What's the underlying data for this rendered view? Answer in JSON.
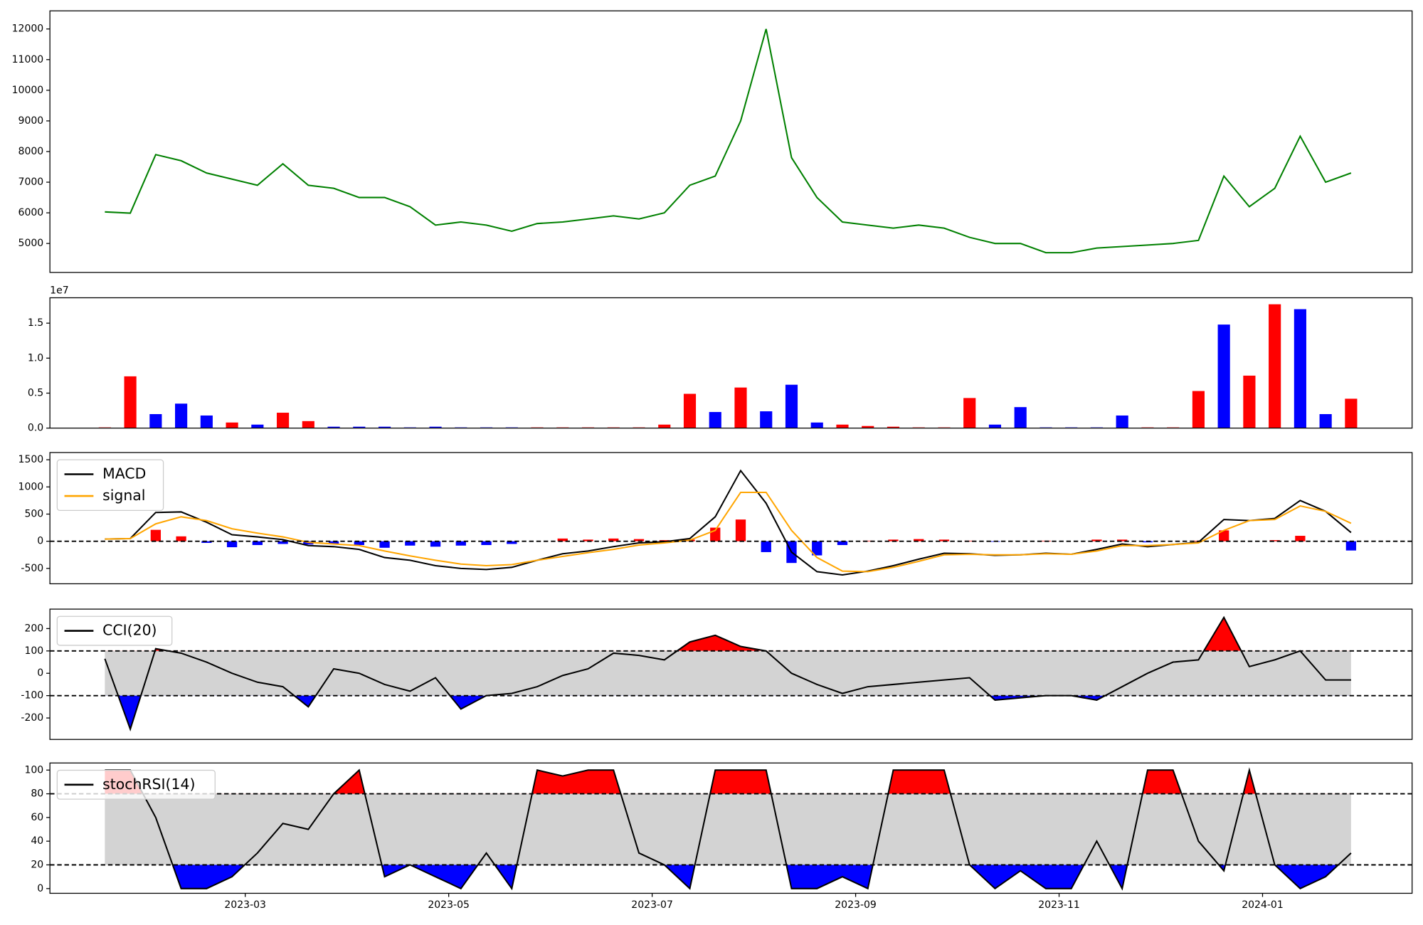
{
  "chart_data": {
    "type": "panels",
    "x": [
      0.62,
      0.87,
      1.12,
      1.37,
      1.62,
      1.87,
      2.12,
      2.37,
      2.62,
      2.87,
      3.12,
      3.37,
      3.62,
      3.87,
      4.12,
      4.37,
      4.62,
      4.87,
      5.12,
      5.37,
      5.62,
      5.87,
      6.12,
      6.37,
      6.62,
      6.87,
      7.12,
      7.37,
      7.62,
      7.87,
      8.12,
      8.37,
      8.62,
      8.87,
      9.12,
      9.37,
      9.62,
      9.87,
      10.12,
      10.37,
      10.62,
      10.87,
      11.12,
      11.37,
      11.62,
      11.87,
      12.12,
      12.37,
      12.62,
      12.87
    ],
    "xlim": [
      0.08,
      13.47
    ],
    "xticks": [
      {
        "value": 2,
        "label": "2023-03"
      },
      {
        "value": 4,
        "label": "2023-05"
      },
      {
        "value": 6,
        "label": "2023-07"
      },
      {
        "value": 8,
        "label": "2023-09"
      },
      {
        "value": 10,
        "label": "2023-11"
      },
      {
        "value": 12,
        "label": "2024-01"
      }
    ],
    "panels": [
      {
        "type": "line",
        "ylim": [
          4055,
          12591
        ],
        "yticks": [
          5000,
          6000,
          7000,
          8000,
          9000,
          10000,
          11000,
          12000
        ],
        "series": [
          {
            "color": "green",
            "values": [
              6030,
              5990,
              7900,
              7700,
              7300,
              7100,
              6900,
              7600,
              6900,
              6800,
              6500,
              6500,
              6200,
              5600,
              5700,
              5600,
              5400,
              5650,
              5700,
              5800,
              5900,
              5800,
              6000,
              6900,
              7200,
              9000,
              12000,
              7800,
              6500,
              5700,
              5600,
              5500,
              5600,
              5500,
              5200,
              5000,
              5000,
              4700,
              4700,
              4850,
              4900,
              4950,
              5000,
              5100,
              7200,
              6200,
              6800,
              8500,
              7000,
              7300
            ]
          }
        ]
      },
      {
        "type": "bar",
        "offset_label": "1e7",
        "ylim": [
          0,
          1.863
        ],
        "yticks": [
          {
            "value": 0,
            "label": "0.0"
          },
          {
            "value": 0.5,
            "label": "0.5"
          },
          {
            "value": 1,
            "label": "1.0"
          },
          {
            "value": 1.5,
            "label": "1.5"
          }
        ],
        "values": [
          0.01,
          0.74,
          0.2,
          0.35,
          0.18,
          0.08,
          0.05,
          0.22,
          0.1,
          0.02,
          0.02,
          0.02,
          0.01,
          0.02,
          0.01,
          0.01,
          0.01,
          0.01,
          0.01,
          0.01,
          0.01,
          0.01,
          0.05,
          0.49,
          0.23,
          0.58,
          0.24,
          0.62,
          0.08,
          0.05,
          0.03,
          0.02,
          0.01,
          0.01,
          0.43,
          0.05,
          0.3,
          0.01,
          0.01,
          0.01,
          0.18,
          0.01,
          0.01,
          0.53,
          1.48,
          0.75,
          1.77,
          1.7,
          0.2,
          0.42
        ],
        "colors": [
          "red",
          "red",
          "blue",
          "blue",
          "blue",
          "red",
          "blue",
          "red",
          "red",
          "blue",
          "blue",
          "blue",
          "blue",
          "blue",
          "blue",
          "blue",
          "blue",
          "red",
          "red",
          "red",
          "red",
          "red",
          "red",
          "red",
          "blue",
          "red",
          "blue",
          "blue",
          "blue",
          "red",
          "red",
          "red",
          "red",
          "red",
          "red",
          "blue",
          "blue",
          "blue",
          "blue",
          "blue",
          "blue",
          "red",
          "red",
          "red",
          "blue",
          "red",
          "red",
          "blue",
          "blue",
          "red"
        ]
      },
      {
        "type": "line",
        "legend": "upper left",
        "ylim": [
          -783,
          1633
        ],
        "yticks": [
          -500,
          0,
          500,
          1000,
          1500
        ],
        "hlines": [
          0
        ],
        "series": [
          {
            "name": "MACD",
            "color": "black",
            "values": [
              40,
              50,
              530,
              540,
              350,
              120,
              80,
              30,
              -80,
              -100,
              -150,
              -300,
              -350,
              -450,
              -500,
              -520,
              -480,
              -350,
              -230,
              -180,
              -100,
              -30,
              -10,
              50,
              450,
              1300,
              700,
              -200,
              -560,
              -620,
              -550,
              -450,
              -330,
              -220,
              -230,
              -260,
              -250,
              -220,
              -240,
              -150,
              -50,
              -100,
              -60,
              -20,
              400,
              380,
              420,
              750,
              550,
              160
            ]
          },
          {
            "name": "signal",
            "color": "orange",
            "values": [
              40,
              50,
              320,
              450,
              380,
              230,
              150,
              80,
              -20,
              -50,
              -80,
              -180,
              -270,
              -350,
              -420,
              -450,
              -430,
              -350,
              -280,
              -210,
              -150,
              -70,
              -30,
              20,
              200,
              900,
              900,
              200,
              -300,
              -550,
              -560,
              -480,
              -370,
              -250,
              -240,
              -250,
              -250,
              -230,
              -240,
              -180,
              -80,
              -80,
              -60,
              -30,
              200,
              380,
              400,
              650,
              550,
              330
            ]
          }
        ],
        "histogram": {
          "pos_color": "red",
          "neg_color": "blue",
          "values": [
            0,
            0,
            210,
            90,
            -30,
            -110,
            -70,
            -50,
            -60,
            -50,
            -70,
            -120,
            -80,
            -100,
            -80,
            -70,
            -50,
            0,
            50,
            30,
            50,
            40,
            20,
            30,
            250,
            400,
            -200,
            -400,
            -260,
            -70,
            10,
            30,
            40,
            30,
            10,
            -10,
            0,
            10,
            0,
            30,
            30,
            -20,
            0,
            10,
            200,
            0,
            20,
            100,
            0,
            -170
          ]
        }
      },
      {
        "type": "line",
        "legend": "upper left",
        "ylim": [
          -296,
          287
        ],
        "yticks": [
          -200,
          -100,
          0,
          100,
          200
        ],
        "hlines": [
          -100,
          100
        ],
        "band_color": "lightgray",
        "above_color": "red",
        "below_color": "blue",
        "series": [
          {
            "name": "CCI(20)",
            "color": "black",
            "values": [
              65,
              -250,
              110,
              90,
              50,
              0,
              -40,
              -60,
              -150,
              20,
              0,
              -50,
              -80,
              -20,
              -160,
              -100,
              -90,
              -60,
              -10,
              20,
              90,
              80,
              60,
              140,
              170,
              120,
              100,
              0,
              -50,
              -90,
              -60,
              -50,
              -40,
              -30,
              -20,
              -120,
              -110,
              -100,
              -100,
              -120,
              -60,
              0,
              50,
              60,
              250,
              30,
              60,
              100,
              -30,
              -30
            ]
          }
        ]
      },
      {
        "type": "line",
        "legend": "upper left",
        "ylim": [
          -4,
          106
        ],
        "yticks": [
          0,
          20,
          40,
          60,
          80,
          100
        ],
        "hlines": [
          20,
          80
        ],
        "band_color": "lightgray",
        "above_color": "red",
        "below_color": "blue",
        "series": [
          {
            "name": "stochRSI(14)",
            "color": "black",
            "values": [
              100,
              100,
              60,
              0,
              0,
              10,
              30,
              55,
              50,
              80,
              100,
              10,
              20,
              10,
              0,
              30,
              0,
              100,
              95,
              100,
              100,
              30,
              20,
              0,
              100,
              100,
              100,
              0,
              0,
              10,
              0,
              100,
              100,
              100,
              20,
              0,
              15,
              0,
              0,
              40,
              0,
              100,
              100,
              40,
              15,
              100,
              20,
              0,
              10,
              30
            ]
          }
        ]
      }
    ]
  }
}
